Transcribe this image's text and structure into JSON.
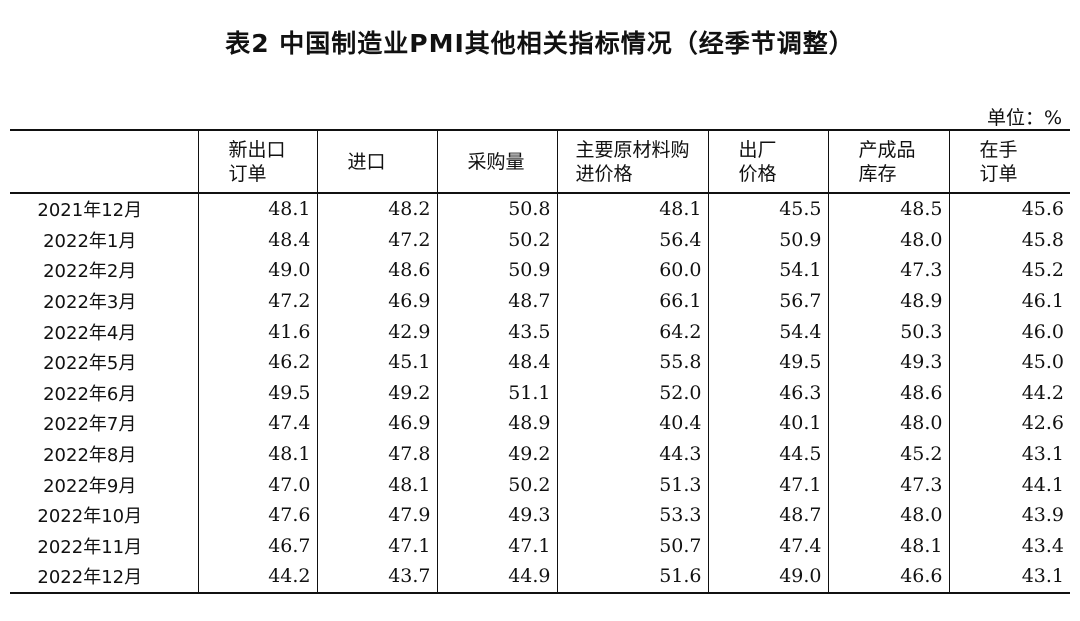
{
  "title": "表2 中国制造业PMI其他相关指标情况（经季节调整）",
  "unit": "单位：%",
  "columns": [
    {
      "line1": "新出口",
      "line2": "订单"
    },
    {
      "line1": "进口",
      "line2": ""
    },
    {
      "line1": "采购量",
      "line2": ""
    },
    {
      "line1": "主要原材料购",
      "line2": "进价格"
    },
    {
      "line1": "出厂",
      "line2": "价格"
    },
    {
      "line1": "产成品",
      "line2": "库存"
    },
    {
      "line1": "在手",
      "line2": "订单"
    }
  ],
  "rows": [
    {
      "month": "2021年12月",
      "values": [
        "48.1",
        "48.2",
        "50.8",
        "48.1",
        "45.5",
        "48.5",
        "45.6"
      ]
    },
    {
      "month": "2022年1月",
      "values": [
        "48.4",
        "47.2",
        "50.2",
        "56.4",
        "50.9",
        "48.0",
        "45.8"
      ]
    },
    {
      "month": "2022年2月",
      "values": [
        "49.0",
        "48.6",
        "50.9",
        "60.0",
        "54.1",
        "47.3",
        "45.2"
      ]
    },
    {
      "month": "2022年3月",
      "values": [
        "47.2",
        "46.9",
        "48.7",
        "66.1",
        "56.7",
        "48.9",
        "46.1"
      ]
    },
    {
      "month": "2022年4月",
      "values": [
        "41.6",
        "42.9",
        "43.5",
        "64.2",
        "54.4",
        "50.3",
        "46.0"
      ]
    },
    {
      "month": "2022年5月",
      "values": [
        "46.2",
        "45.1",
        "48.4",
        "55.8",
        "49.5",
        "49.3",
        "45.0"
      ]
    },
    {
      "month": "2022年6月",
      "values": [
        "49.5",
        "49.2",
        "51.1",
        "52.0",
        "46.3",
        "48.6",
        "44.2"
      ]
    },
    {
      "month": "2022年7月",
      "values": [
        "47.4",
        "46.9",
        "48.9",
        "40.4",
        "40.1",
        "48.0",
        "42.6"
      ]
    },
    {
      "month": "2022年8月",
      "values": [
        "48.1",
        "47.8",
        "49.2",
        "44.3",
        "44.5",
        "45.2",
        "43.1"
      ]
    },
    {
      "month": "2022年9月",
      "values": [
        "47.0",
        "48.1",
        "50.2",
        "51.3",
        "47.1",
        "47.3",
        "44.1"
      ]
    },
    {
      "month": "2022年10月",
      "values": [
        "47.6",
        "47.9",
        "49.3",
        "53.3",
        "48.7",
        "48.0",
        "43.9"
      ]
    },
    {
      "month": "2022年11月",
      "values": [
        "46.7",
        "47.1",
        "47.1",
        "50.7",
        "47.4",
        "48.1",
        "43.4"
      ]
    },
    {
      "month": "2022年12月",
      "values": [
        "44.2",
        "43.7",
        "44.9",
        "51.6",
        "49.0",
        "46.6",
        "43.1"
      ]
    }
  ]
}
